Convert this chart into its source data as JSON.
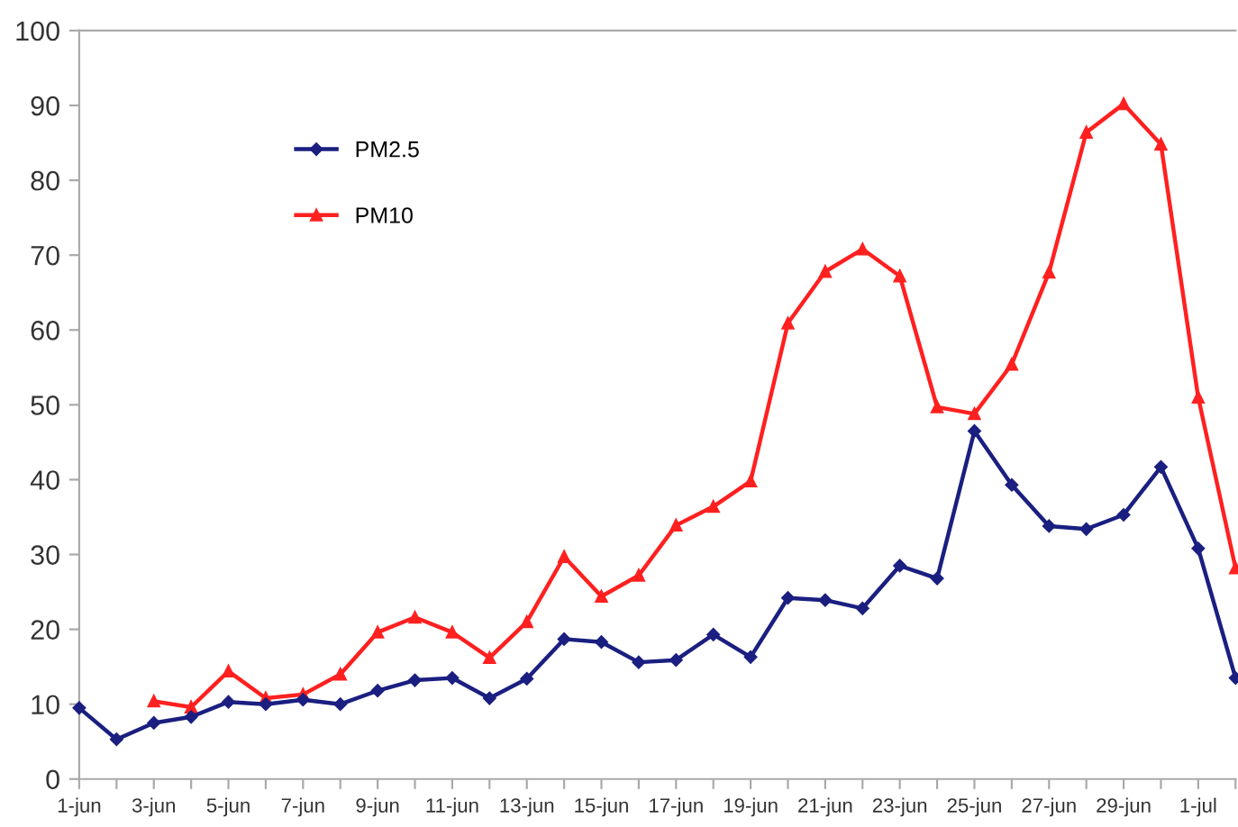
{
  "chart_data": {
    "type": "line",
    "categories": [
      "1-jun",
      null,
      "3-jun",
      null,
      "5-jun",
      null,
      "7-jun",
      null,
      "9-jun",
      null,
      "11-jun",
      null,
      "13-jun",
      null,
      "15-jun",
      null,
      "17-jun",
      null,
      "19-jun",
      null,
      "21-jun",
      null,
      "23-jun",
      null,
      "25-jun",
      null,
      "27-jun",
      null,
      "29-jun",
      null,
      "1-jul",
      null
    ],
    "series": [
      {
        "name": "PM2.5",
        "color": "#1a1f80",
        "marker": "diamond",
        "values": [
          9.5,
          5.3,
          7.5,
          8.3,
          10.3,
          10,
          10.6,
          10,
          11.8,
          13.2,
          13.5,
          10.8,
          13.4,
          18.7,
          18.3,
          15.6,
          15.9,
          19.3,
          16.3,
          24.2,
          23.9,
          22.8,
          28.5,
          26.8,
          46.5,
          39.3,
          33.8,
          33.4,
          35.3,
          41.7,
          30.8,
          13.5
        ]
      },
      {
        "name": "PM10",
        "color": "#ff2020",
        "marker": "triangle",
        "values": [
          null,
          null,
          10.4,
          9.6,
          14.4,
          10.8,
          11.3,
          14,
          19.6,
          21.6,
          19.6,
          16.2,
          21,
          29.7,
          24.4,
          27.2,
          33.9,
          36.4,
          39.8,
          60.9,
          67.8,
          70.8,
          67.2,
          49.7,
          48.8,
          55.4,
          67.7,
          86.4,
          90.2,
          84.8,
          51,
          28.2
        ]
      }
    ],
    "ylim": [
      0,
      100
    ],
    "yticks": [
      0,
      10,
      20,
      30,
      40,
      50,
      60,
      70,
      80,
      90,
      100
    ],
    "grid": false,
    "legend": "top left",
    "line_style": "solid"
  }
}
